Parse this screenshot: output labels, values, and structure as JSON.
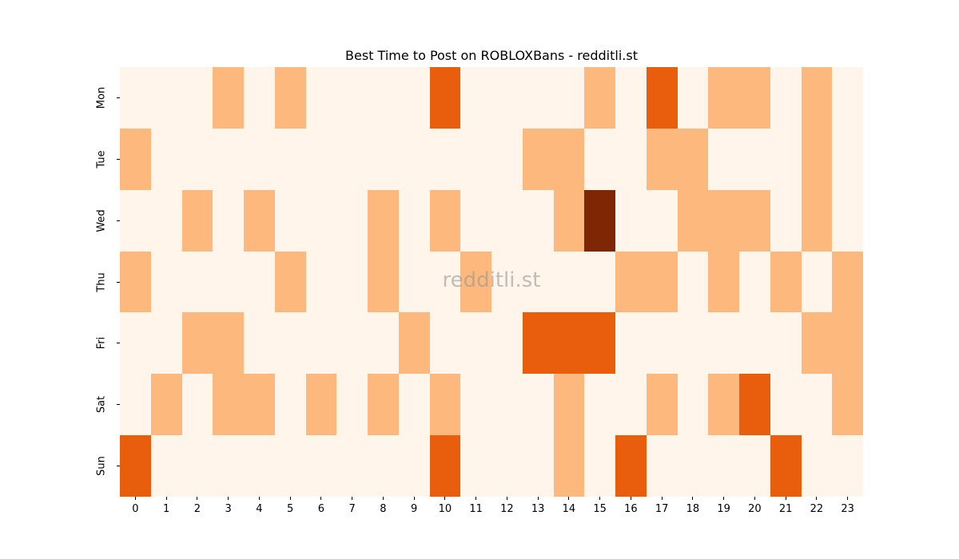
{
  "chart_data": {
    "type": "heatmap",
    "title": "Best Time to Post on ROBLOXBans - redditli.st",
    "xlabel": "",
    "ylabel": "",
    "x": [
      "0",
      "1",
      "2",
      "3",
      "4",
      "5",
      "6",
      "7",
      "8",
      "9",
      "10",
      "11",
      "12",
      "13",
      "14",
      "15",
      "16",
      "17",
      "18",
      "19",
      "20",
      "21",
      "22",
      "23"
    ],
    "y": [
      "Mon",
      "Tue",
      "Wed",
      "Thu",
      "Fri",
      "Sat",
      "Sun"
    ],
    "values": [
      [
        0,
        0,
        0,
        1,
        0,
        1,
        0,
        0,
        0,
        0,
        2,
        0,
        0,
        0,
        0,
        1,
        0,
        2,
        0,
        1,
        1,
        0,
        1,
        0
      ],
      [
        1,
        0,
        0,
        0,
        0,
        0,
        0,
        0,
        0,
        0,
        0,
        0,
        0,
        1,
        1,
        0,
        0,
        1,
        1,
        0,
        0,
        0,
        1,
        0
      ],
      [
        0,
        0,
        1,
        0,
        1,
        0,
        0,
        0,
        1,
        0,
        1,
        0,
        0,
        0,
        1,
        3,
        0,
        0,
        1,
        1,
        1,
        0,
        1,
        0
      ],
      [
        1,
        0,
        0,
        0,
        0,
        1,
        0,
        0,
        1,
        0,
        0,
        1,
        0,
        0,
        0,
        0,
        1,
        1,
        0,
        1,
        0,
        1,
        0,
        1
      ],
      [
        0,
        0,
        1,
        1,
        0,
        0,
        0,
        0,
        0,
        1,
        0,
        0,
        0,
        2,
        2,
        2,
        0,
        0,
        0,
        0,
        0,
        0,
        1,
        1
      ],
      [
        0,
        1,
        0,
        1,
        1,
        0,
        1,
        0,
        1,
        0,
        1,
        0,
        0,
        0,
        1,
        0,
        0,
        1,
        0,
        1,
        2,
        0,
        0,
        1
      ],
      [
        2,
        0,
        0,
        0,
        0,
        0,
        0,
        0,
        0,
        0,
        2,
        0,
        0,
        0,
        1,
        0,
        2,
        0,
        0,
        0,
        0,
        2,
        0,
        0
      ]
    ],
    "colormap": "Oranges",
    "colors": {
      "0": "#fff5eb",
      "1": "#fdb97d",
      "2": "#e95e0d",
      "3": "#7f2704"
    },
    "colorbar": false,
    "grid": false,
    "watermark": "redditli.st"
  }
}
